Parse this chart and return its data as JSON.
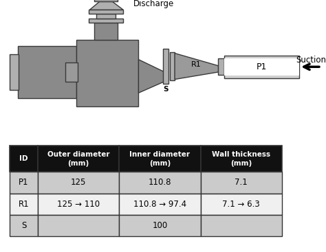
{
  "table_headers": [
    "ID",
    "Outer diameter\n(mm)",
    "Inner diameter\n(mm)",
    "Wall thickness\n(mm)"
  ],
  "table_rows": [
    [
      "P1",
      "125",
      "110.8",
      "7.1"
    ],
    [
      "R1",
      "125 → 110",
      "110.8 → 97.4",
      "7.1 → 6.3"
    ],
    [
      "S",
      "",
      "100",
      ""
    ]
  ],
  "discharge_label": "Discharge",
  "suction_label": "Suction",
  "pump_gray": "#8a8a8a",
  "light_gray": "#b0b0b0",
  "medium_gray": "#9a9a9a",
  "dark_edge": "#3a3a3a",
  "pipe_fill": "#d0d0d0",
  "pipe_inner": "#f0f0f0",
  "bg_color": "#ffffff",
  "header_bg": "#111111",
  "header_fg": "#ffffff",
  "row_bg_odd": "#cbcbcb",
  "row_bg_even": "#f0f0f0",
  "table_border": "#333333",
  "label_S": "S",
  "label_R1": "R1",
  "label_P1": "P1"
}
